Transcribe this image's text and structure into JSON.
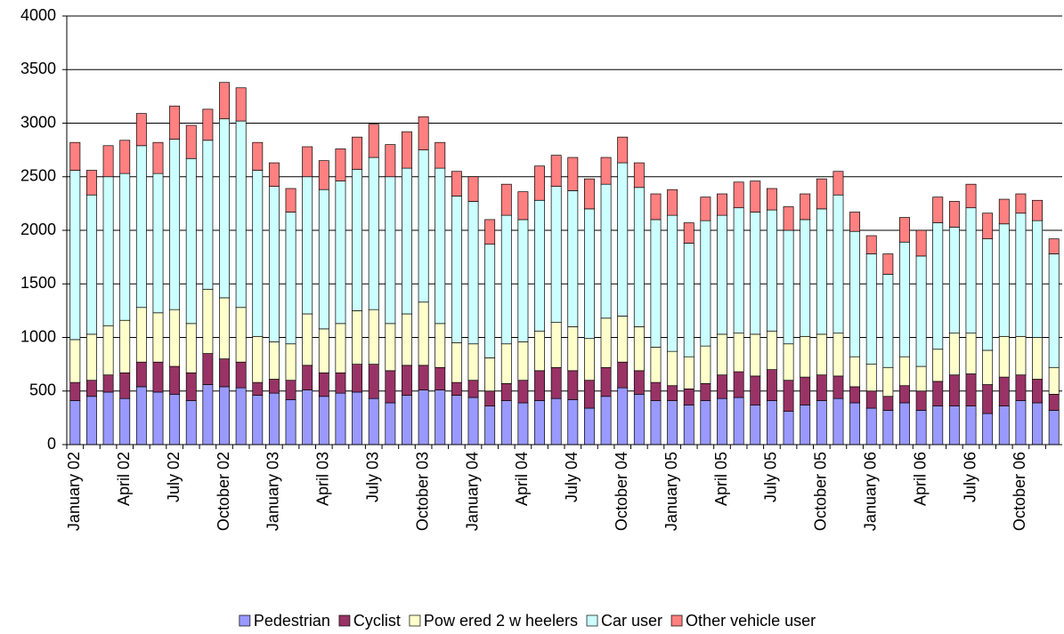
{
  "chart_data": {
    "type": "stacked_bar",
    "categories": [
      "January 02",
      null,
      null,
      "April 02",
      null,
      null,
      "July 02",
      null,
      null,
      "October 02",
      null,
      null,
      "January 03",
      null,
      null,
      "April 03",
      null,
      null,
      "July 03",
      null,
      null,
      "October 03",
      null,
      null,
      "January 04",
      null,
      null,
      "April 04",
      null,
      null,
      "July 04",
      null,
      null,
      "October 04",
      null,
      null,
      "January 05",
      null,
      null,
      "April 05",
      null,
      null,
      "July 05",
      null,
      null,
      "October 05",
      null,
      null,
      "January 06",
      null,
      null,
      "April 06",
      null,
      null,
      "July 06",
      null,
      null,
      "October 06",
      null,
      null
    ],
    "series": [
      {
        "name": "Pedestrian",
        "color": "#9999ff",
        "values": [
          410,
          450,
          490,
          430,
          540,
          490,
          470,
          410,
          560,
          540,
          530,
          460,
          480,
          420,
          510,
          450,
          480,
          490,
          430,
          390,
          460,
          510,
          510,
          460,
          440,
          360,
          410,
          390,
          410,
          430,
          420,
          340,
          450,
          530,
          470,
          410,
          410,
          370,
          410,
          430,
          440,
          370,
          410,
          310,
          370,
          410,
          430,
          390,
          340,
          320,
          390,
          320,
          360,
          360,
          360,
          290,
          360,
          410,
          390,
          320
        ]
      },
      {
        "name": "Cyclist",
        "color": "#993366",
        "values": [
          170,
          150,
          160,
          240,
          230,
          280,
          260,
          260,
          290,
          260,
          240,
          120,
          130,
          180,
          230,
          220,
          190,
          260,
          320,
          300,
          280,
          230,
          210,
          120,
          160,
          140,
          160,
          210,
          280,
          290,
          270,
          260,
          270,
          240,
          220,
          170,
          140,
          150,
          160,
          220,
          240,
          270,
          290,
          290,
          260,
          240,
          210,
          150,
          160,
          130,
          160,
          180,
          230,
          290,
          300,
          270,
          270,
          240,
          220,
          150
        ]
      },
      {
        "name": "Pow ered 2 w heelers",
        "color": "#ffffcc",
        "values": [
          400,
          430,
          460,
          490,
          510,
          460,
          530,
          460,
          600,
          570,
          510,
          430,
          350,
          340,
          480,
          410,
          460,
          500,
          510,
          440,
          480,
          590,
          410,
          370,
          340,
          310,
          370,
          360,
          370,
          420,
          410,
          390,
          460,
          430,
          410,
          330,
          320,
          300,
          350,
          380,
          360,
          390,
          360,
          340,
          380,
          380,
          400,
          280,
          250,
          270,
          270,
          230,
          300,
          390,
          380,
          320,
          380,
          360,
          390,
          250
        ]
      },
      {
        "name": "Car user",
        "color": "#ccffff",
        "values": [
          1580,
          1300,
          1390,
          1370,
          1510,
          1300,
          1590,
          1540,
          1390,
          1670,
          1740,
          1550,
          1450,
          1230,
          1280,
          1300,
          1330,
          1320,
          1420,
          1370,
          1360,
          1420,
          1450,
          1370,
          1330,
          1060,
          1200,
          1140,
          1220,
          1270,
          1270,
          1210,
          1250,
          1430,
          1300,
          1190,
          1270,
          1060,
          1170,
          1110,
          1170,
          1140,
          1130,
          1060,
          1090,
          1170,
          1290,
          1170,
          1030,
          870,
          1070,
          1030,
          1180,
          990,
          1170,
          1040,
          1050,
          1150,
          1090,
          1060
        ]
      },
      {
        "name": "Other vehicle user",
        "color": "#ff8080",
        "values": [
          260,
          230,
          290,
          310,
          300,
          290,
          310,
          310,
          290,
          340,
          310,
          260,
          220,
          220,
          280,
          270,
          300,
          300,
          310,
          300,
          340,
          310,
          240,
          230,
          230,
          230,
          290,
          260,
          320,
          290,
          310,
          280,
          250,
          240,
          230,
          240,
          240,
          190,
          220,
          200,
          240,
          290,
          200,
          220,
          240,
          280,
          220,
          180,
          170,
          190,
          230,
          240,
          240,
          240,
          220,
          240,
          230,
          180,
          190,
          140
        ]
      }
    ],
    "ylim": [
      0,
      4000
    ],
    "yticks": [
      0,
      500,
      1000,
      1500,
      2000,
      2500,
      3000,
      3500,
      4000
    ],
    "grid": true,
    "legend": "bottom"
  }
}
